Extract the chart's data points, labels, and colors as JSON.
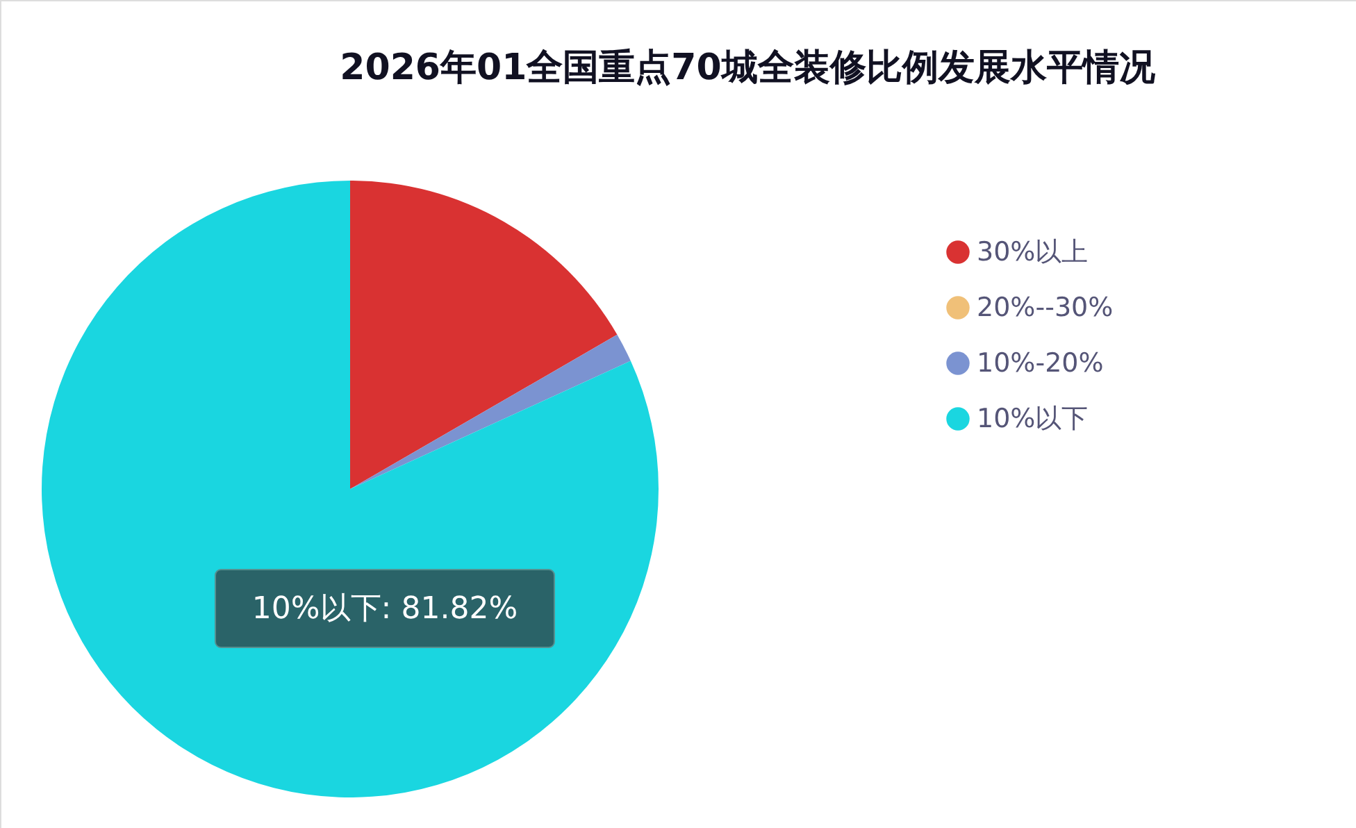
{
  "chart_data": {
    "type": "pie",
    "title": "2026年01全国重点70城全装修比例发展水平情况",
    "categories": [
      "30%以上",
      "20%--30%",
      "10%-20%",
      "10%以下"
    ],
    "values": [
      16.66,
      0,
      1.52,
      81.82
    ],
    "colors": [
      "#d93232",
      "#f0c078",
      "#7b93d1",
      "#1ad6e0"
    ],
    "legend": "right",
    "annotations": [
      "10%以下: 81.82%"
    ]
  }
}
